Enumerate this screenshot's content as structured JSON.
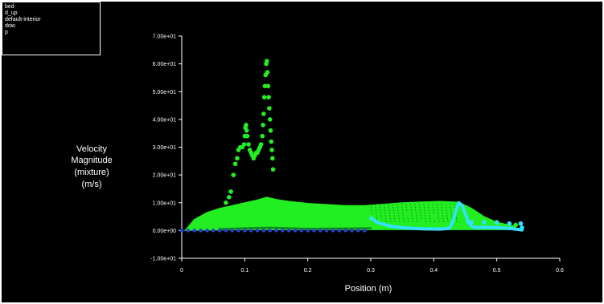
{
  "chart_data": {
    "type": "scatter",
    "title": "",
    "legend": [
      "bed",
      "d_up",
      "default-interior",
      "dow",
      "p"
    ],
    "legend_placement": "top-left",
    "xlabel": "Position (m)",
    "ylabel": [
      "Velocity",
      "Magnitude",
      "(mixture)",
      "(m/s)"
    ],
    "xlim": [
      0,
      0.6
    ],
    "ylim": [
      -10,
      70
    ],
    "x_ticks": [
      "0",
      "0.1",
      "0.2",
      "0.3",
      "0.4",
      "0.5",
      "0.6"
    ],
    "x_tick_values": [
      0,
      0.1,
      0.2,
      0.3,
      0.4,
      0.5,
      0.6
    ],
    "y_ticks": [
      "-1.00e+01",
      "0.00e+00",
      "1.00e+01",
      "2.00e+01",
      "3.00e+01",
      "4.00e+01",
      "5.00e+01",
      "6.00e+01",
      "7.00e+01"
    ],
    "y_tick_values": [
      -10,
      0,
      10,
      20,
      30,
      40,
      50,
      60,
      70
    ],
    "grid": false,
    "colors": {
      "background": "#000000",
      "text": "#ffffff",
      "green_series": "#22ee22",
      "dark_green": "#0d8a1c",
      "cyan_series": "#33e0ff",
      "blue_series": "#2a3fd6"
    },
    "series": [
      {
        "kind": "envelope",
        "color": "#22ee22",
        "upper": [
          [
            0.005,
            0
          ],
          [
            0.02,
            4
          ],
          [
            0.04,
            6.5
          ],
          [
            0.06,
            8
          ],
          [
            0.08,
            9
          ],
          [
            0.1,
            10
          ],
          [
            0.12,
            11
          ],
          [
            0.135,
            12
          ],
          [
            0.15,
            11.2
          ],
          [
            0.17,
            10.5
          ],
          [
            0.2,
            9.8
          ],
          [
            0.23,
            9.4
          ],
          [
            0.26,
            9
          ],
          [
            0.29,
            9
          ],
          [
            0.32,
            9.5
          ],
          [
            0.35,
            10
          ],
          [
            0.38,
            10.3
          ],
          [
            0.41,
            10.5
          ],
          [
            0.44,
            10.2
          ],
          [
            0.46,
            8
          ],
          [
            0.48,
            5
          ],
          [
            0.5,
            3
          ],
          [
            0.53,
            1.5
          ]
        ],
        "lower": [
          [
            0.53,
            0.3
          ],
          [
            0.45,
            0.3
          ],
          [
            0.3,
            0.3
          ],
          [
            0.1,
            0.3
          ],
          [
            0.005,
            0
          ]
        ]
      },
      {
        "kind": "points",
        "color": "#22ee22",
        "points": [
          [
            0.06,
            7
          ],
          [
            0.07,
            10
          ],
          [
            0.075,
            12
          ],
          [
            0.078,
            14
          ],
          [
            0.082,
            20
          ],
          [
            0.085,
            24
          ],
          [
            0.088,
            26
          ],
          [
            0.09,
            29
          ],
          [
            0.093,
            30
          ],
          [
            0.096,
            30
          ],
          [
            0.099,
            31
          ],
          [
            0.1,
            34
          ],
          [
            0.101,
            37
          ],
          [
            0.102,
            38
          ],
          [
            0.103,
            36
          ],
          [
            0.104,
            34
          ],
          [
            0.106,
            31
          ],
          [
            0.108,
            29
          ],
          [
            0.11,
            28
          ],
          [
            0.112,
            27
          ],
          [
            0.114,
            26
          ],
          [
            0.116,
            27
          ],
          [
            0.118,
            28
          ],
          [
            0.12,
            28
          ],
          [
            0.122,
            29
          ],
          [
            0.124,
            30
          ],
          [
            0.126,
            31
          ],
          [
            0.128,
            34
          ],
          [
            0.129,
            38
          ],
          [
            0.13,
            42
          ],
          [
            0.131,
            48
          ],
          [
            0.132,
            52
          ],
          [
            0.133,
            56
          ],
          [
            0.134,
            60
          ],
          [
            0.135,
            61
          ],
          [
            0.136,
            57
          ],
          [
            0.137,
            52
          ],
          [
            0.138,
            48
          ],
          [
            0.139,
            44
          ],
          [
            0.14,
            40
          ],
          [
            0.141,
            36
          ],
          [
            0.142,
            32
          ],
          [
            0.143,
            29
          ],
          [
            0.144,
            26
          ],
          [
            0.145,
            22
          ],
          [
            0.3,
            5
          ],
          [
            0.31,
            3
          ],
          [
            0.32,
            4
          ],
          [
            0.34,
            2
          ],
          [
            0.36,
            6
          ],
          [
            0.38,
            3
          ],
          [
            0.4,
            5
          ],
          [
            0.42,
            2
          ],
          [
            0.44,
            4
          ],
          [
            0.46,
            2
          ],
          [
            0.48,
            1
          ],
          [
            0.5,
            3
          ],
          [
            0.52,
            1
          ],
          [
            0.53,
            2
          ]
        ]
      },
      {
        "kind": "line",
        "color": "#0d8a1c",
        "points": [
          [
            0.06,
            0.5
          ],
          [
            0.1,
            0.8
          ],
          [
            0.14,
            1.0
          ],
          [
            0.2,
            0.6
          ],
          [
            0.3,
            0.8
          ]
        ]
      },
      {
        "kind": "points",
        "color": "#2a3fd6",
        "points": [
          [
            0,
            0
          ],
          [
            0.01,
            0
          ],
          [
            0.02,
            0
          ],
          [
            0.03,
            0
          ],
          [
            0.04,
            0
          ],
          [
            0.05,
            0
          ],
          [
            0.06,
            0
          ],
          [
            0.07,
            0
          ],
          [
            0.08,
            0
          ],
          [
            0.09,
            0
          ],
          [
            0.1,
            0
          ],
          [
            0.11,
            0
          ],
          [
            0.12,
            0
          ],
          [
            0.13,
            0
          ],
          [
            0.14,
            0
          ],
          [
            0.15,
            0
          ],
          [
            0.16,
            0
          ],
          [
            0.17,
            0
          ],
          [
            0.18,
            0
          ],
          [
            0.19,
            0
          ],
          [
            0.2,
            0
          ],
          [
            0.21,
            0
          ],
          [
            0.22,
            0
          ],
          [
            0.23,
            0
          ],
          [
            0.24,
            0
          ],
          [
            0.25,
            0
          ],
          [
            0.26,
            0
          ],
          [
            0.27,
            0
          ],
          [
            0.28,
            0
          ],
          [
            0.29,
            0
          ]
        ]
      },
      {
        "kind": "line",
        "color": "#33e0ff",
        "points": [
          [
            0.3,
            4.5
          ],
          [
            0.31,
            3
          ],
          [
            0.33,
            1.6
          ],
          [
            0.35,
            1
          ],
          [
            0.38,
            0.6
          ],
          [
            0.41,
            0.5
          ],
          [
            0.425,
            0.8
          ],
          [
            0.43,
            3
          ],
          [
            0.435,
            7
          ],
          [
            0.44,
            10
          ],
          [
            0.445,
            9
          ],
          [
            0.45,
            6
          ],
          [
            0.455,
            3
          ],
          [
            0.46,
            1.5
          ],
          [
            0.47,
            1
          ],
          [
            0.48,
            1.2
          ],
          [
            0.5,
            1
          ],
          [
            0.52,
            0.8
          ],
          [
            0.53,
            0.5
          ],
          [
            0.54,
            0.2
          ]
        ]
      },
      {
        "kind": "points",
        "color": "#33e0ff",
        "points": [
          [
            0.46,
            3
          ],
          [
            0.48,
            3
          ],
          [
            0.5,
            2.8
          ],
          [
            0.52,
            2.5
          ],
          [
            0.538,
            2.5
          ],
          [
            0.54,
            1
          ]
        ]
      }
    ]
  }
}
